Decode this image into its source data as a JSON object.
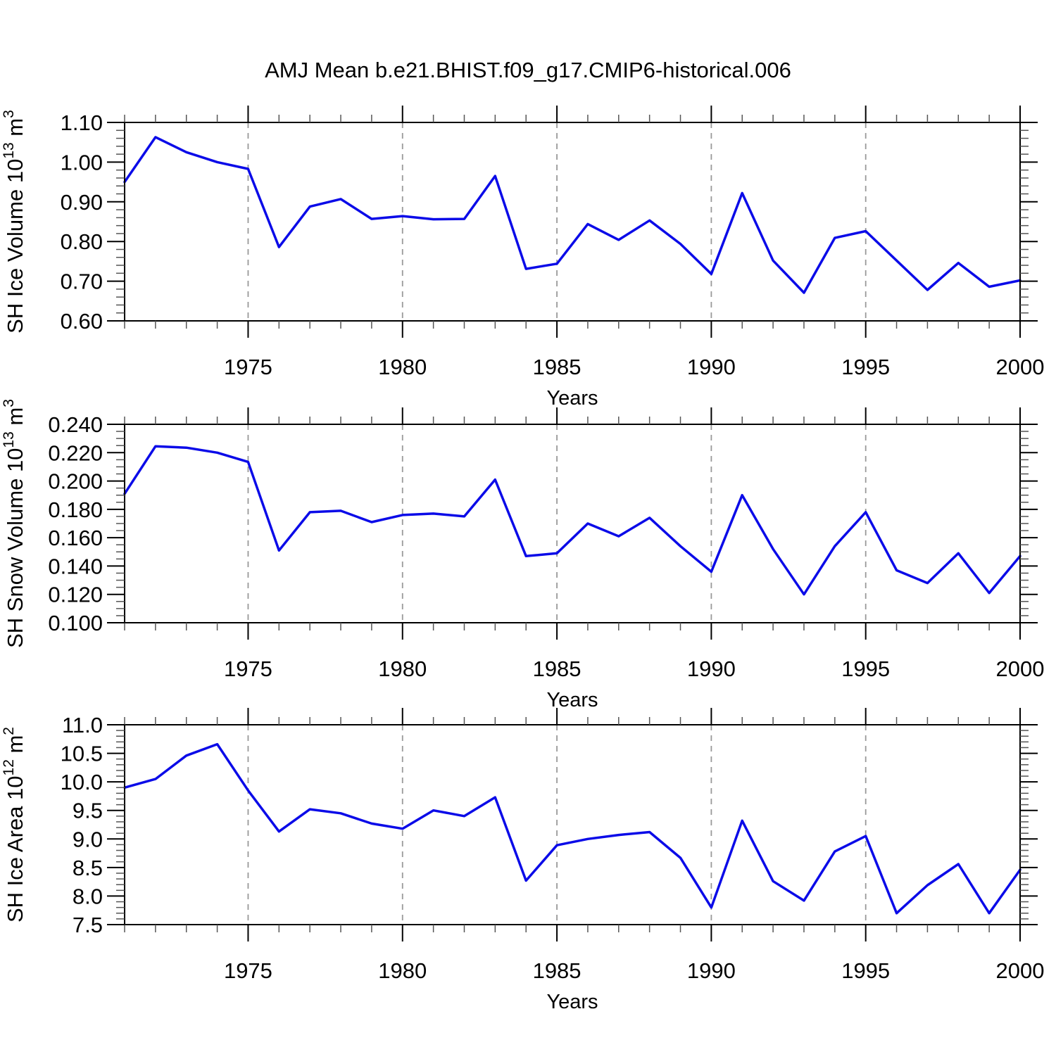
{
  "title": "AMJ Mean b.e21.BHIST.f09_g17.CMIP6-historical.006",
  "colors": {
    "line": "#0b0be8",
    "grid": "#999999",
    "frame": "#000000",
    "minor_tick": "#555555",
    "text": "#000000",
    "background": "#ffffff"
  },
  "chart_data": [
    {
      "type": "line",
      "name": "sh-ice-volume",
      "xlabel": "Years",
      "ylabel_plain": "SH Ice Volume 10^13 m^3",
      "ylabel_segments": [
        {
          "t": "SH Ice Volume 10"
        },
        {
          "t": "13",
          "sup": true
        },
        {
          "t": " m"
        },
        {
          "t": "3",
          "sup": true
        }
      ],
      "x": [
        1971,
        1972,
        1973,
        1974,
        1975,
        1976,
        1977,
        1978,
        1979,
        1980,
        1981,
        1982,
        1983,
        1984,
        1985,
        1986,
        1987,
        1988,
        1989,
        1990,
        1991,
        1992,
        1993,
        1994,
        1995,
        1996,
        1997,
        1998,
        1999,
        2000
      ],
      "values": [
        0.95,
        1.063,
        1.025,
        1.0,
        0.983,
        0.786,
        0.888,
        0.907,
        0.857,
        0.864,
        0.856,
        0.857,
        0.965,
        0.731,
        0.744,
        0.844,
        0.804,
        0.853,
        0.794,
        0.718,
        0.922,
        0.752,
        0.671,
        0.809,
        0.826,
        0.752,
        0.678,
        0.746,
        0.686,
        0.702
      ],
      "xlim": [
        1971,
        2000
      ],
      "ylim": [
        0.6,
        1.1
      ],
      "ytick_major": 0.1,
      "ytick_minor": 0.02,
      "ytick_labels": [
        "0.60",
        "0.70",
        "0.80",
        "0.90",
        "1.00",
        "1.10"
      ],
      "xtick_major_step": 5,
      "xtick_minor_step": 1,
      "xtick_labels": [
        "1975",
        "1980",
        "1985",
        "1990",
        "1995",
        "2000"
      ],
      "xticks_labeled": [
        1975,
        1980,
        1985,
        1990,
        1995,
        2000
      ],
      "gridlines_x": [
        1975,
        1980,
        1985,
        1990,
        1995
      ],
      "grid_horizontal": false,
      "legend": "none"
    },
    {
      "type": "line",
      "name": "sh-snow-volume",
      "xlabel": "Years",
      "ylabel_plain": "SH Snow Volume 10^13 m^3",
      "ylabel_segments": [
        {
          "t": "SH Snow Volume 10"
        },
        {
          "t": "13",
          "sup": true
        },
        {
          "t": " m"
        },
        {
          "t": "3",
          "sup": true
        }
      ],
      "x": [
        1971,
        1972,
        1973,
        1974,
        1975,
        1976,
        1977,
        1978,
        1979,
        1980,
        1981,
        1982,
        1983,
        1984,
        1985,
        1986,
        1987,
        1988,
        1989,
        1990,
        1991,
        1992,
        1993,
        1994,
        1995,
        1996,
        1997,
        1998,
        1999,
        2000
      ],
      "values": [
        0.191,
        0.2245,
        0.2235,
        0.22,
        0.2135,
        0.151,
        0.178,
        0.179,
        0.171,
        0.176,
        0.177,
        0.175,
        0.201,
        0.147,
        0.149,
        0.17,
        0.161,
        0.174,
        0.154,
        0.136,
        0.19,
        0.152,
        0.12,
        0.154,
        0.178,
        0.137,
        0.128,
        0.149,
        0.121,
        0.147
      ],
      "xlim": [
        1971,
        2000
      ],
      "ylim": [
        0.1,
        0.24
      ],
      "ytick_major": 0.02,
      "ytick_minor": 0.005,
      "ytick_labels": [
        "0.100",
        "0.120",
        "0.140",
        "0.160",
        "0.180",
        "0.200",
        "0.220",
        "0.240"
      ],
      "xtick_major_step": 5,
      "xtick_minor_step": 1,
      "xtick_labels": [
        "1975",
        "1980",
        "1985",
        "1990",
        "1995",
        "2000"
      ],
      "xticks_labeled": [
        1975,
        1980,
        1985,
        1990,
        1995,
        2000
      ],
      "gridlines_x": [
        1975,
        1980,
        1985,
        1990,
        1995
      ],
      "grid_horizontal": false,
      "legend": "none"
    },
    {
      "type": "line",
      "name": "sh-ice-area",
      "xlabel": "Years",
      "ylabel_plain": "SH Ice Area 10^12 m^2",
      "ylabel_segments": [
        {
          "t": "SH Ice Area 10"
        },
        {
          "t": "12",
          "sup": true
        },
        {
          "t": " m"
        },
        {
          "t": "2",
          "sup": true
        }
      ],
      "x": [
        1971,
        1972,
        1973,
        1974,
        1975,
        1976,
        1977,
        1978,
        1979,
        1980,
        1981,
        1982,
        1983,
        1984,
        1985,
        1986,
        1987,
        1988,
        1989,
        1990,
        1991,
        1992,
        1993,
        1994,
        1995,
        1996,
        1997,
        1998,
        1999,
        2000
      ],
      "values": [
        9.9,
        10.05,
        10.46,
        10.66,
        9.85,
        9.13,
        9.52,
        9.45,
        9.27,
        9.18,
        9.5,
        9.4,
        9.73,
        8.27,
        8.89,
        9.0,
        9.07,
        9.12,
        8.67,
        7.8,
        9.32,
        8.26,
        7.92,
        8.78,
        9.05,
        7.7,
        8.19,
        8.56,
        7.7,
        8.46
      ],
      "xlim": [
        1971,
        2000
      ],
      "ylim": [
        7.5,
        11.0
      ],
      "ytick_major": 0.5,
      "ytick_minor": 0.1,
      "ytick_labels": [
        "7.5",
        "8.0",
        "8.5",
        "9.0",
        "9.5",
        "10.0",
        "10.5",
        "11.0"
      ],
      "xtick_major_step": 5,
      "xtick_minor_step": 1,
      "xtick_labels": [
        "1975",
        "1980",
        "1985",
        "1990",
        "1995",
        "2000"
      ],
      "xticks_labeled": [
        1975,
        1980,
        1985,
        1990,
        1995,
        2000
      ],
      "gridlines_x": [
        1975,
        1980,
        1985,
        1990,
        1995
      ],
      "grid_horizontal": false,
      "legend": "none"
    }
  ]
}
